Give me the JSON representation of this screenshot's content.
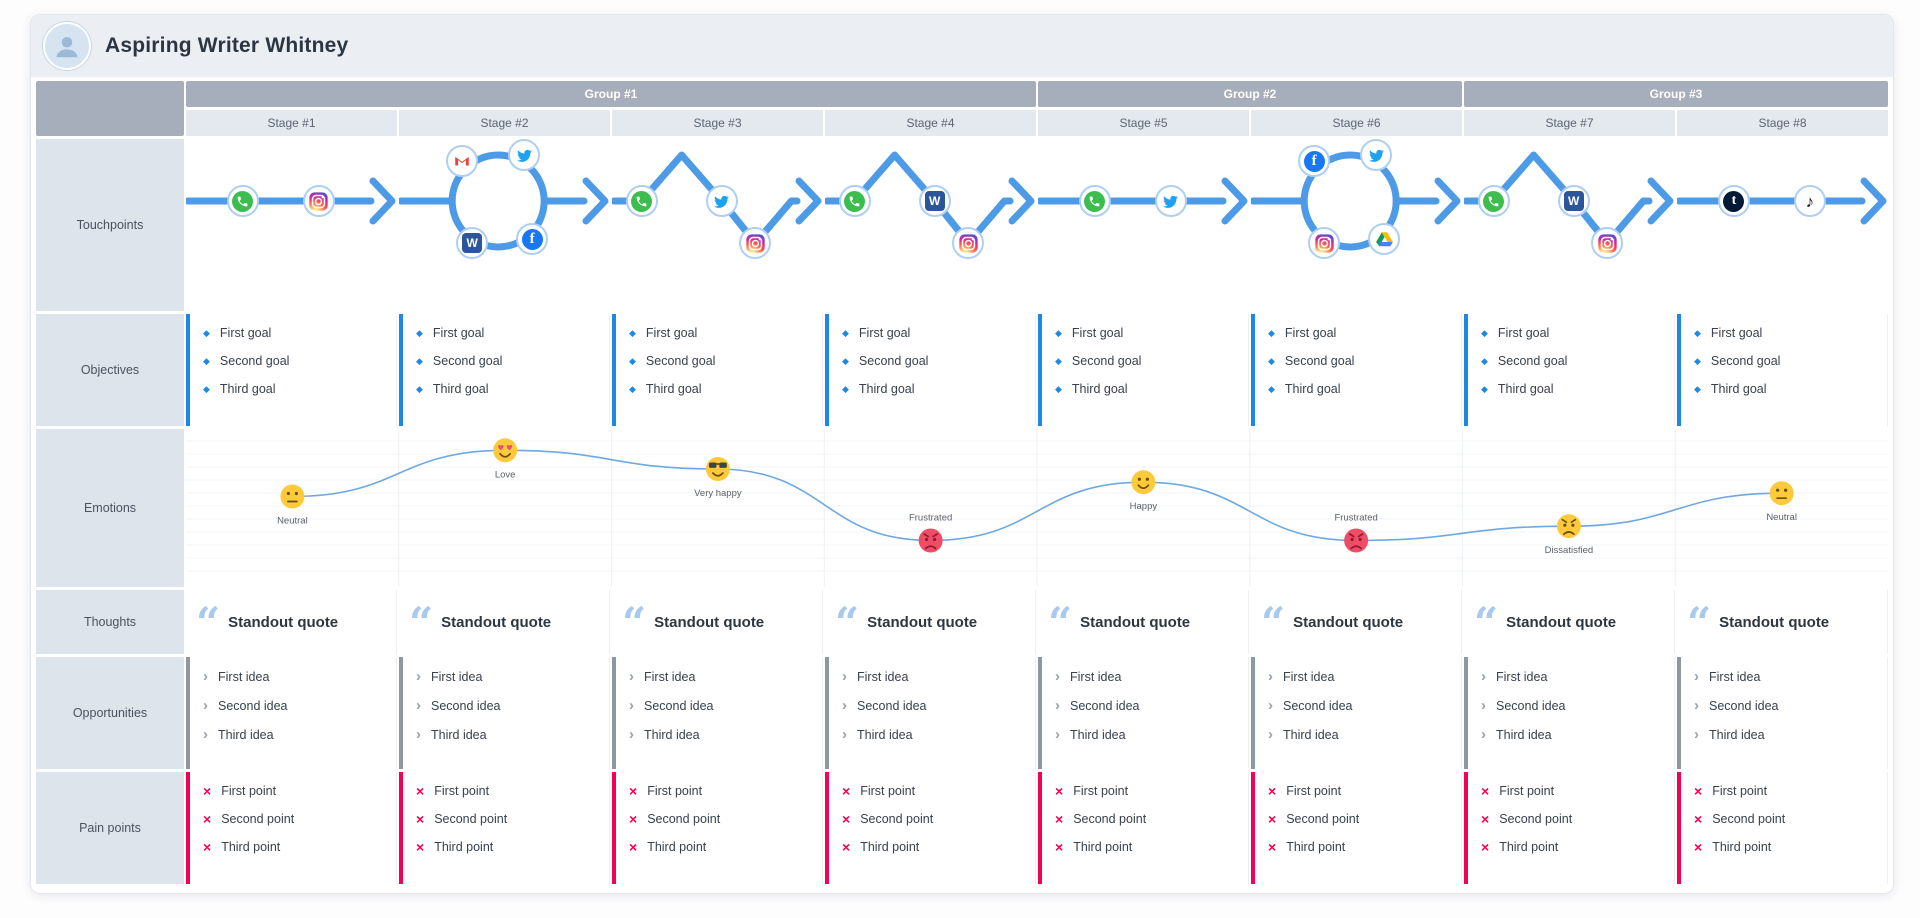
{
  "persona": {
    "name": "Aspiring Writer Whitney"
  },
  "rows": [
    {
      "id": "touchpoints",
      "label": "Touchpoints"
    },
    {
      "id": "objectives",
      "label": "Objectives"
    },
    {
      "id": "emotions",
      "label": "Emotions"
    },
    {
      "id": "thoughts",
      "label": "Thoughts"
    },
    {
      "id": "opportunities",
      "label": "Opportunities"
    },
    {
      "id": "painpoints",
      "label": "Pain points"
    }
  ],
  "groups": [
    {
      "label": "Group #1",
      "span": 4
    },
    {
      "label": "Group #2",
      "span": 2
    },
    {
      "label": "Group #3",
      "span": 2
    }
  ],
  "stages": [
    {
      "label": "Stage #1",
      "touchpoints": {
        "pattern": "straight",
        "icons": [
          "whatsapp",
          "instagram"
        ]
      },
      "objectives": [
        "First goal",
        "Second goal",
        "Third goal"
      ],
      "thought": "Standout quote",
      "opportunities": [
        "First idea",
        "Second idea",
        "Third idea"
      ],
      "pain_points": [
        "First point",
        "Second point",
        "Third point"
      ]
    },
    {
      "label": "Stage #2",
      "touchpoints": {
        "pattern": "loop",
        "icons": [
          "gmail",
          "twitter",
          "word",
          "facebook"
        ]
      },
      "objectives": [
        "First goal",
        "Second goal",
        "Third goal"
      ],
      "thought": "Standout quote",
      "opportunities": [
        "First idea",
        "Second idea",
        "Third idea"
      ],
      "pain_points": [
        "First point",
        "Second point",
        "Third point"
      ]
    },
    {
      "label": "Stage #3",
      "touchpoints": {
        "pattern": "peakdip",
        "icons": [
          "whatsapp",
          "twitter",
          "instagram"
        ]
      },
      "objectives": [
        "First goal",
        "Second goal",
        "Third goal"
      ],
      "thought": "Standout quote",
      "opportunities": [
        "First idea",
        "Second idea",
        "Third idea"
      ],
      "pain_points": [
        "First point",
        "Second point",
        "Third point"
      ]
    },
    {
      "label": "Stage #4",
      "touchpoints": {
        "pattern": "peakdip",
        "icons": [
          "whatsapp",
          "word",
          "instagram"
        ]
      },
      "objectives": [
        "First goal",
        "Second goal",
        "Third goal"
      ],
      "thought": "Standout quote",
      "opportunities": [
        "First idea",
        "Second idea",
        "Third idea"
      ],
      "pain_points": [
        "First point",
        "Second point",
        "Third point"
      ]
    },
    {
      "label": "Stage #5",
      "touchpoints": {
        "pattern": "straight",
        "icons": [
          "whatsapp",
          "twitter"
        ]
      },
      "objectives": [
        "First goal",
        "Second goal",
        "Third goal"
      ],
      "thought": "Standout quote",
      "opportunities": [
        "First idea",
        "Second idea",
        "Third idea"
      ],
      "pain_points": [
        "First point",
        "Second point",
        "Third point"
      ]
    },
    {
      "label": "Stage #6",
      "touchpoints": {
        "pattern": "loop",
        "icons": [
          "facebook",
          "twitter",
          "instagram",
          "gdrive"
        ]
      },
      "objectives": [
        "First goal",
        "Second goal",
        "Third goal"
      ],
      "thought": "Standout quote",
      "opportunities": [
        "First idea",
        "Second idea",
        "Third idea"
      ],
      "pain_points": [
        "First point",
        "Second point",
        "Third point"
      ]
    },
    {
      "label": "Stage #7",
      "touchpoints": {
        "pattern": "peakdip",
        "icons": [
          "whatsapp",
          "word",
          "instagram"
        ]
      },
      "objectives": [
        "First goal",
        "Second goal",
        "Third goal"
      ],
      "thought": "Standout quote",
      "opportunities": [
        "First idea",
        "Second idea",
        "Third idea"
      ],
      "pain_points": [
        "First point",
        "Second point",
        "Third point"
      ]
    },
    {
      "label": "Stage #8",
      "touchpoints": {
        "pattern": "straight",
        "icons": [
          "tumblr",
          "tiktok"
        ]
      },
      "objectives": [
        "First goal",
        "Second goal",
        "Third goal"
      ],
      "thought": "Standout quote",
      "opportunities": [
        "First idea",
        "Second idea",
        "Third idea"
      ],
      "pain_points": [
        "First point",
        "Second point",
        "Third point"
      ]
    }
  ],
  "emotions_line": [
    {
      "stage": 1,
      "label": "Neutral",
      "face": "neutral",
      "level": 0.45
    },
    {
      "stage": 2,
      "label": "Love",
      "face": "love",
      "level": 0.03
    },
    {
      "stage": 3,
      "label": "Very happy",
      "face": "very-happy",
      "level": 0.2
    },
    {
      "stage": 4,
      "label": "Frustrated",
      "face": "frustrated",
      "level": 0.85
    },
    {
      "stage": 5,
      "label": "Happy",
      "face": "happy",
      "level": 0.32
    },
    {
      "stage": 6,
      "label": "Frustrated",
      "face": "frustrated",
      "level": 0.85
    },
    {
      "stage": 7,
      "label": "Dissatisfied",
      "face": "dissatisfied",
      "level": 0.72
    },
    {
      "stage": 8,
      "label": "Neutral",
      "face": "neutral",
      "level": 0.42
    }
  ],
  "glyphs": {
    "diamond": "◆",
    "chevron": "›",
    "cross": "×",
    "quote": "“",
    "note": "♪"
  },
  "colors": {
    "accent_blue": "#1E88E5",
    "accent_gray": "#8F97A1",
    "accent_pink": "#F50057",
    "arrow": "#4D9BE6",
    "emotion_line": "#6FA8E0",
    "face_yellow": "#FFC93C",
    "face_red": "#EF4D66",
    "group_header_bg": "#A7AEBB",
    "stage_header_bg": "#E4E8EF",
    "row_label_bg": "#DEE4EC",
    "whatsapp": "#3DBD4E",
    "gmail": "#EA4335",
    "twitter": "#1DA1F2",
    "word": "#2B579A",
    "facebook": "#1877F2",
    "gdrive_green": "#0F9D58",
    "gdrive_yellow": "#FBBC04",
    "gdrive_blue": "#4285F4",
    "tumblr": "#001935",
    "tiktok_note": "#161823"
  }
}
